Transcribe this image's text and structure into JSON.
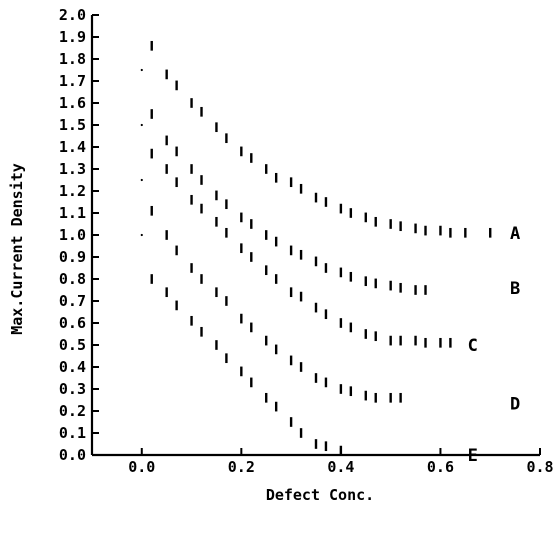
{
  "chart_data": {
    "type": "scatter",
    "title": "",
    "xlabel": "Defect Conc.",
    "ylabel": "Max.Current Density",
    "xlim": [
      -0.1,
      0.8
    ],
    "ylim": [
      0.0,
      2.0
    ],
    "xticks": [
      "0.0",
      "0.2",
      "0.4",
      "0.6",
      "0.8"
    ],
    "yticks": [
      "0.0",
      "0.1",
      "0.2",
      "0.3",
      "0.4",
      "0.5",
      "0.6",
      "0.7",
      "0.8",
      "0.9",
      "1.0",
      "1.1",
      "1.2",
      "1.3",
      "1.4",
      "1.5",
      "1.6",
      "1.7",
      "1.8",
      "1.9",
      "2.0"
    ],
    "grid": false,
    "marker": "vertical error bar",
    "series": [
      {
        "name": "A",
        "points": [
          {
            "x": 0.0,
            "y": 1.75
          },
          {
            "x": 0.02,
            "y": 1.86
          },
          {
            "x": 0.05,
            "y": 1.73
          },
          {
            "x": 0.07,
            "y": 1.68
          },
          {
            "x": 0.1,
            "y": 1.6
          },
          {
            "x": 0.12,
            "y": 1.56
          },
          {
            "x": 0.15,
            "y": 1.49
          },
          {
            "x": 0.17,
            "y": 1.44
          },
          {
            "x": 0.2,
            "y": 1.38
          },
          {
            "x": 0.22,
            "y": 1.35
          },
          {
            "x": 0.25,
            "y": 1.3
          },
          {
            "x": 0.27,
            "y": 1.26
          },
          {
            "x": 0.3,
            "y": 1.24
          },
          {
            "x": 0.32,
            "y": 1.21
          },
          {
            "x": 0.35,
            "y": 1.17
          },
          {
            "x": 0.37,
            "y": 1.15
          },
          {
            "x": 0.4,
            "y": 1.12
          },
          {
            "x": 0.42,
            "y": 1.1
          },
          {
            "x": 0.45,
            "y": 1.08
          },
          {
            "x": 0.47,
            "y": 1.06
          },
          {
            "x": 0.5,
            "y": 1.05
          },
          {
            "x": 0.52,
            "y": 1.04
          },
          {
            "x": 0.55,
            "y": 1.03
          },
          {
            "x": 0.57,
            "y": 1.02
          },
          {
            "x": 0.6,
            "y": 1.02
          },
          {
            "x": 0.62,
            "y": 1.01
          },
          {
            "x": 0.65,
            "y": 1.01
          },
          {
            "x": 0.7,
            "y": 1.01
          }
        ]
      },
      {
        "name": "B",
        "points": [
          {
            "x": 0.0,
            "y": 1.5
          },
          {
            "x": 0.02,
            "y": 1.55
          },
          {
            "x": 0.05,
            "y": 1.43
          },
          {
            "x": 0.07,
            "y": 1.38
          },
          {
            "x": 0.1,
            "y": 1.3
          },
          {
            "x": 0.12,
            "y": 1.25
          },
          {
            "x": 0.15,
            "y": 1.18
          },
          {
            "x": 0.17,
            "y": 1.14
          },
          {
            "x": 0.2,
            "y": 1.08
          },
          {
            "x": 0.22,
            "y": 1.05
          },
          {
            "x": 0.25,
            "y": 1.0
          },
          {
            "x": 0.27,
            "y": 0.97
          },
          {
            "x": 0.3,
            "y": 0.93
          },
          {
            "x": 0.32,
            "y": 0.91
          },
          {
            "x": 0.35,
            "y": 0.88
          },
          {
            "x": 0.37,
            "y": 0.85
          },
          {
            "x": 0.4,
            "y": 0.83
          },
          {
            "x": 0.42,
            "y": 0.81
          },
          {
            "x": 0.45,
            "y": 0.79
          },
          {
            "x": 0.47,
            "y": 0.78
          },
          {
            "x": 0.5,
            "y": 0.77
          },
          {
            "x": 0.52,
            "y": 0.76
          },
          {
            "x": 0.55,
            "y": 0.75
          },
          {
            "x": 0.57,
            "y": 0.75
          }
        ]
      },
      {
        "name": "C",
        "points": [
          {
            "x": 0.0,
            "y": 1.25
          },
          {
            "x": 0.02,
            "y": 1.37
          },
          {
            "x": 0.05,
            "y": 1.3
          },
          {
            "x": 0.07,
            "y": 1.24
          },
          {
            "x": 0.1,
            "y": 1.16
          },
          {
            "x": 0.12,
            "y": 1.12
          },
          {
            "x": 0.15,
            "y": 1.06
          },
          {
            "x": 0.17,
            "y": 1.01
          },
          {
            "x": 0.2,
            "y": 0.94
          },
          {
            "x": 0.22,
            "y": 0.9
          },
          {
            "x": 0.25,
            "y": 0.84
          },
          {
            "x": 0.27,
            "y": 0.8
          },
          {
            "x": 0.3,
            "y": 0.74
          },
          {
            "x": 0.32,
            "y": 0.72
          },
          {
            "x": 0.35,
            "y": 0.67
          },
          {
            "x": 0.37,
            "y": 0.64
          },
          {
            "x": 0.4,
            "y": 0.6
          },
          {
            "x": 0.42,
            "y": 0.58
          },
          {
            "x": 0.45,
            "y": 0.55
          },
          {
            "x": 0.47,
            "y": 0.54
          },
          {
            "x": 0.5,
            "y": 0.52
          },
          {
            "x": 0.52,
            "y": 0.52
          },
          {
            "x": 0.55,
            "y": 0.52
          },
          {
            "x": 0.57,
            "y": 0.51
          },
          {
            "x": 0.6,
            "y": 0.51
          },
          {
            "x": 0.62,
            "y": 0.51
          }
        ]
      },
      {
        "name": "D",
        "points": [
          {
            "x": 0.0,
            "y": 1.0
          },
          {
            "x": 0.02,
            "y": 1.11
          },
          {
            "x": 0.05,
            "y": 1.0
          },
          {
            "x": 0.07,
            "y": 0.93
          },
          {
            "x": 0.1,
            "y": 0.85
          },
          {
            "x": 0.12,
            "y": 0.8
          },
          {
            "x": 0.15,
            "y": 0.74
          },
          {
            "x": 0.17,
            "y": 0.7
          },
          {
            "x": 0.2,
            "y": 0.62
          },
          {
            "x": 0.22,
            "y": 0.58
          },
          {
            "x": 0.25,
            "y": 0.52
          },
          {
            "x": 0.27,
            "y": 0.48
          },
          {
            "x": 0.3,
            "y": 0.43
          },
          {
            "x": 0.32,
            "y": 0.4
          },
          {
            "x": 0.35,
            "y": 0.35
          },
          {
            "x": 0.37,
            "y": 0.33
          },
          {
            "x": 0.4,
            "y": 0.3
          },
          {
            "x": 0.42,
            "y": 0.29
          },
          {
            "x": 0.45,
            "y": 0.27
          },
          {
            "x": 0.47,
            "y": 0.26
          },
          {
            "x": 0.5,
            "y": 0.26
          },
          {
            "x": 0.52,
            "y": 0.26
          }
        ]
      },
      {
        "name": "E",
        "points": [
          {
            "x": 0.02,
            "y": 0.8
          },
          {
            "x": 0.05,
            "y": 0.74
          },
          {
            "x": 0.07,
            "y": 0.68
          },
          {
            "x": 0.1,
            "y": 0.61
          },
          {
            "x": 0.12,
            "y": 0.56
          },
          {
            "x": 0.15,
            "y": 0.5
          },
          {
            "x": 0.17,
            "y": 0.44
          },
          {
            "x": 0.2,
            "y": 0.38
          },
          {
            "x": 0.22,
            "y": 0.33
          },
          {
            "x": 0.25,
            "y": 0.26
          },
          {
            "x": 0.27,
            "y": 0.22
          },
          {
            "x": 0.3,
            "y": 0.15
          },
          {
            "x": 0.32,
            "y": 0.1
          },
          {
            "x": 0.35,
            "y": 0.05
          },
          {
            "x": 0.37,
            "y": 0.04
          },
          {
            "x": 0.4,
            "y": 0.02
          }
        ]
      }
    ]
  }
}
